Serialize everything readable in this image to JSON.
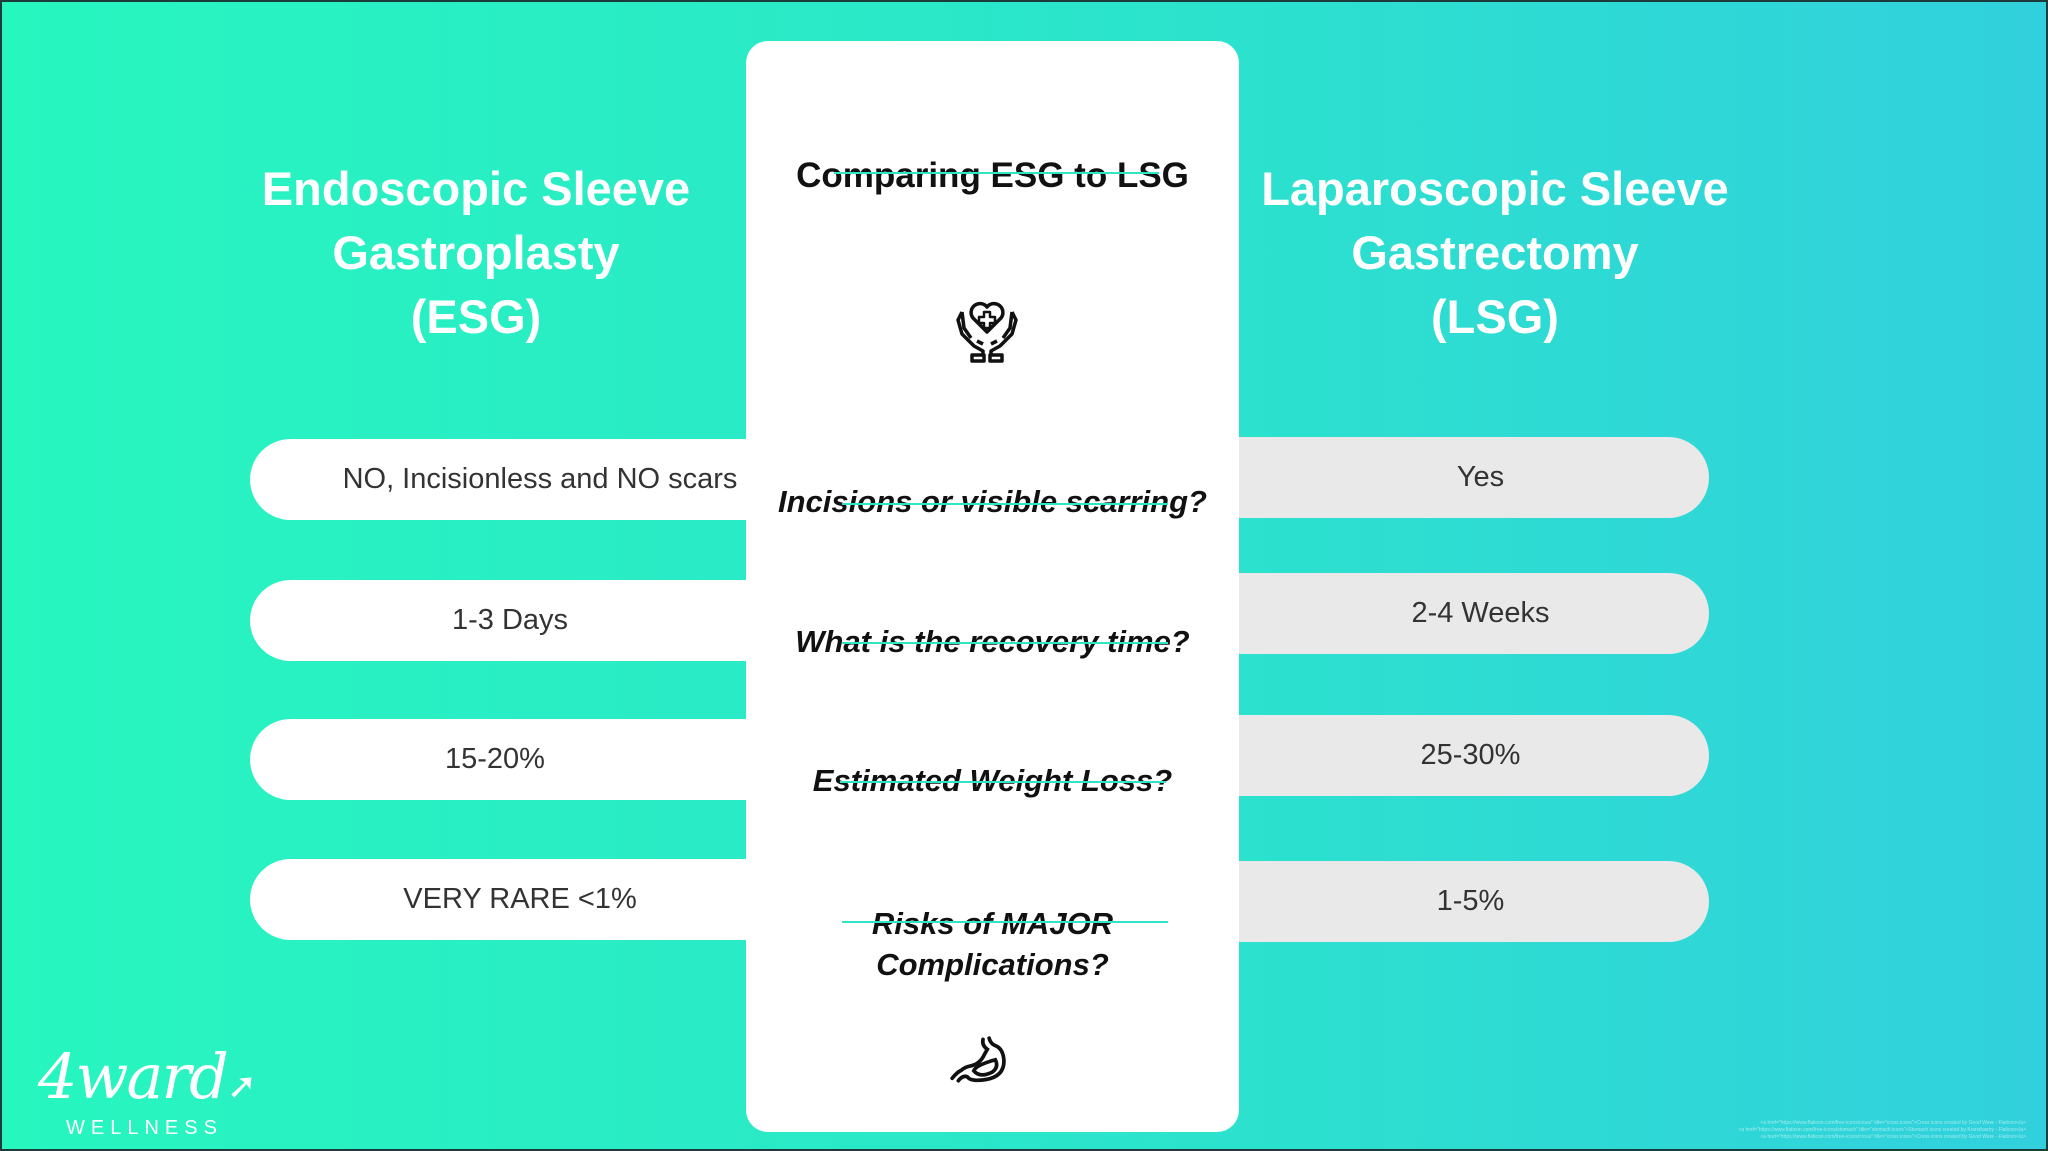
{
  "left_title": [
    "Endoscopic Sleeve",
    "Gastroplasty",
    "(ESG)"
  ],
  "right_title": [
    "Laparoscopic Sleeve",
    "Gastrectomy",
    "(LSG)"
  ],
  "card_title": "Comparing ESG to LSG",
  "rows": [
    {
      "question": "Incisions or visible scarring?",
      "esg": "NO, Incisionless and NO scars",
      "lsg": "Yes"
    },
    {
      "question": "What is the recovery time?",
      "esg": "1-3 Days",
      "lsg": "2-4 Weeks"
    },
    {
      "question": "Estimated Weight Loss?",
      "esg": "15-20%",
      "lsg": "25-30%"
    },
    {
      "question_lines": [
        "Risks of MAJOR",
        "Complications?"
      ],
      "esg": "VERY RARE <1%",
      "lsg": "1-5%"
    }
  ],
  "icons": [
    "heart-hands-icon",
    "stomach-icon"
  ],
  "logo": {
    "name": "4ward",
    "sub": "WELLNESS"
  },
  "attribution": [
    "<a href=\"https://www.flaticon.com/free-icons/cross\" title=\"cross icons\">Cross icons created by Good Ware - Flaticon</a>",
    "<a href=\"https://www.flaticon.com/free-icons/stomach\" title=\"stomach icons\">Stomach icons created by Kranshastry - Flaticon</a>",
    "<a href=\"https://www.flaticon.com/free-icons/cross\" title=\"cross icons\">Cross icons created by Good Ware - Flaticon</a>"
  ],
  "colors": {
    "accent": "#2fe6c4",
    "bg_left": "#27f6bf",
    "bg_right": "#31d0dd"
  }
}
